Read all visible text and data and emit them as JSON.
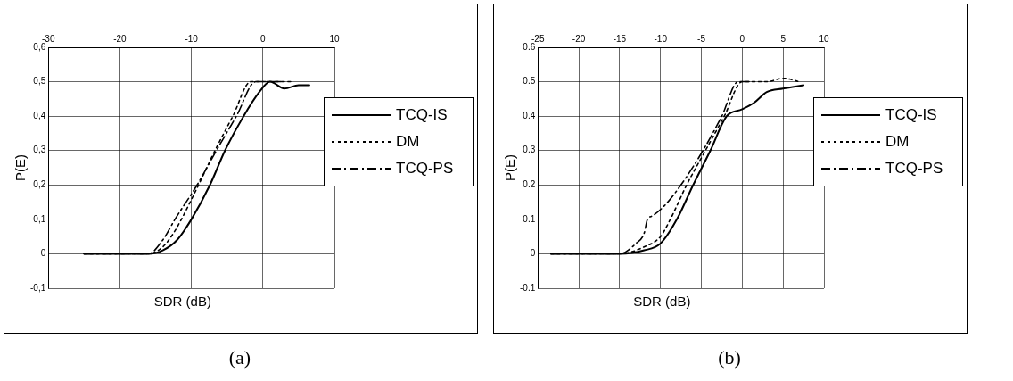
{
  "chart_data": [
    {
      "type": "line",
      "xlabel": "SDR (dB)",
      "ylabel": "P(E)",
      "annotations": [
        "(a)"
      ],
      "xlim": [
        -30,
        10
      ],
      "xticks": [
        -30,
        -20,
        -10,
        0,
        10
      ],
      "ylim": [
        -0.1,
        0.6
      ],
      "yticks": [
        {
          "value": -0.1,
          "label": "-0,1"
        },
        {
          "value": 0,
          "label": "0"
        },
        {
          "value": 0.1,
          "label": "0,1"
        },
        {
          "value": 0.2,
          "label": "0,2"
        },
        {
          "value": 0.3,
          "label": "0,3"
        },
        {
          "value": 0.4,
          "label": "0,4"
        },
        {
          "value": 0.5,
          "label": "0,5"
        },
        {
          "value": 0.6,
          "label": "0,6"
        }
      ],
      "grid": true,
      "legend": "right",
      "marker": "none",
      "series": [
        {
          "name": "TCQ-IS",
          "color": "#000000",
          "line_style": "solid",
          "x": [
            -25,
            -16,
            -14,
            -12,
            -10,
            -7.4,
            -5.3,
            -2.7,
            -0.5,
            1,
            3,
            5,
            6.5
          ],
          "values": [
            0,
            0,
            0.01,
            0.04,
            0.1,
            0.2,
            0.3,
            0.4,
            0.47,
            0.5,
            0.48,
            0.49,
            0.49
          ]
        },
        {
          "name": "DM",
          "color": "#000000",
          "line_style": "dotted",
          "x": [
            -25,
            -16,
            -14,
            -12.5,
            -11.4,
            -9,
            -6.7,
            -4.2,
            -1.7,
            0,
            4
          ],
          "values": [
            0,
            0,
            0.02,
            0.06,
            0.1,
            0.2,
            0.3,
            0.4,
            0.5,
            0.5,
            0.5
          ]
        },
        {
          "name": "TCQ-PS",
          "color": "#000000",
          "line_style": "dashed",
          "x": [
            -25,
            -16,
            -14,
            -12.3,
            -9.2,
            -6.5,
            -3.7,
            -1,
            0,
            3
          ],
          "values": [
            0,
            0,
            0.04,
            0.1,
            0.2,
            0.3,
            0.4,
            0.5,
            0.5,
            0.5
          ]
        }
      ]
    },
    {
      "type": "line",
      "xlabel": "SDR (dB)",
      "ylabel": "P(E)",
      "annotations": [
        "(b)"
      ],
      "xlim": [
        -25,
        10
      ],
      "xticks": [
        -25,
        -20,
        -15,
        -10,
        -5,
        0,
        5,
        10
      ],
      "ylim": [
        -0.1,
        0.6
      ],
      "yticks": [
        -0.1,
        0,
        0.1,
        0.2,
        0.3,
        0.4,
        0.5,
        0.6
      ],
      "grid": true,
      "legend": "right",
      "marker": "none",
      "series": [
        {
          "name": "TCQ-IS",
          "color": "#000000",
          "line_style": "solid",
          "x": [
            -23.4,
            -15,
            -12,
            -10,
            -8,
            -6,
            -3.9,
            -1.9,
            0,
            1.5,
            3,
            5,
            7.5
          ],
          "values": [
            0,
            0,
            0.01,
            0.03,
            0.1,
            0.2,
            0.3,
            0.4,
            0.42,
            0.44,
            0.47,
            0.48,
            0.49
          ]
        },
        {
          "name": "DM",
          "color": "#000000",
          "line_style": "dotted",
          "x": [
            -23.4,
            -15,
            -12,
            -10,
            -8.8,
            -6.8,
            -4.5,
            -2.2,
            0,
            3,
            5,
            7
          ],
          "values": [
            0,
            0,
            0.02,
            0.05,
            0.1,
            0.2,
            0.3,
            0.4,
            0.5,
            0.5,
            0.51,
            0.5
          ]
        },
        {
          "name": "TCQ-PS",
          "color": "#000000",
          "line_style": "dashed",
          "x": [
            -23.4,
            -15,
            -13,
            -12,
            -11.6,
            -11,
            -9.5,
            -7.5,
            -4.8,
            -2.5,
            -0.5,
            1
          ],
          "values": [
            0,
            0,
            0.03,
            0.06,
            0.1,
            0.11,
            0.14,
            0.2,
            0.3,
            0.4,
            0.5,
            0.5
          ]
        }
      ]
    }
  ]
}
